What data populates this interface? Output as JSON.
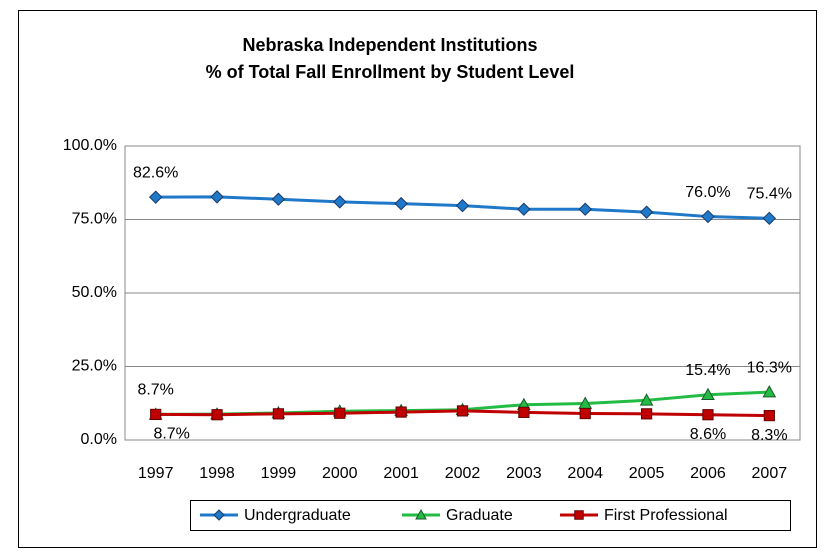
{
  "chart_data": {
    "type": "line",
    "title": [
      "Nebraska Independent Institutions",
      "% of Total Fall Enrollment by Student Level"
    ],
    "categories": [
      "1997",
      "1998",
      "1999",
      "2000",
      "2001",
      "2002",
      "2003",
      "2004",
      "2005",
      "2006",
      "2007"
    ],
    "series": [
      {
        "name": "Undergraduate",
        "color": "#1f78c8",
        "marker": "diamond",
        "values": [
          82.6,
          82.7,
          81.9,
          81.0,
          80.4,
          79.7,
          78.5,
          78.5,
          77.5,
          76.0,
          75.4
        ],
        "value_labels": [
          "82.6%",
          null,
          null,
          null,
          null,
          null,
          null,
          null,
          null,
          "76.0%",
          "75.4%"
        ]
      },
      {
        "name": "Graduate",
        "color": "#22bb44",
        "marker": "triangle",
        "values": [
          8.7,
          8.8,
          9.2,
          9.8,
          10.0,
          10.3,
          12.0,
          12.4,
          13.5,
          15.4,
          16.3
        ],
        "value_labels": [
          "8.7%",
          null,
          null,
          null,
          null,
          null,
          null,
          null,
          null,
          "15.4%",
          "16.3%"
        ]
      },
      {
        "name": "First Professional",
        "color": "#c00000",
        "marker": "square",
        "values": [
          8.7,
          8.6,
          8.9,
          9.1,
          9.5,
          9.9,
          9.4,
          9.0,
          8.9,
          8.6,
          8.3
        ],
        "value_labels": [
          "8.7%",
          null,
          null,
          null,
          null,
          null,
          null,
          null,
          null,
          "8.6%",
          "8.3%"
        ]
      }
    ],
    "ylim": [
      0,
      100
    ],
    "yticks": [
      {
        "value": 0,
        "label": "0.0%"
      },
      {
        "value": 25,
        "label": "25.0%"
      },
      {
        "value": 50,
        "label": "50.0%"
      },
      {
        "value": 75,
        "label": "75.0%"
      },
      {
        "value": 100,
        "label": "100.0%"
      }
    ],
    "grid": true,
    "legend": "bottom"
  }
}
